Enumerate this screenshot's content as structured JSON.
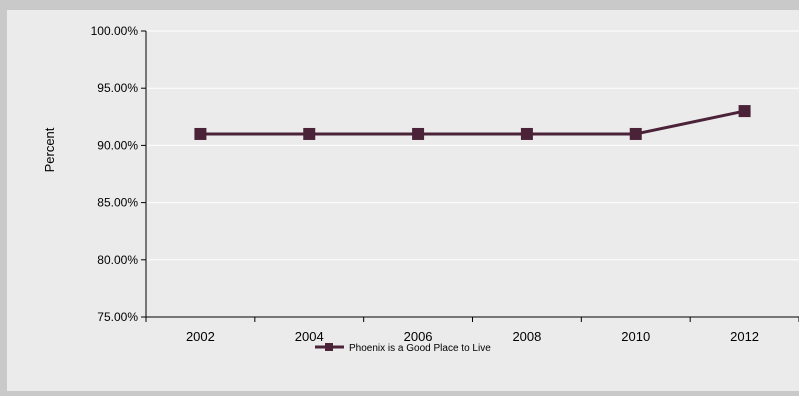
{
  "chart_data": {
    "type": "line",
    "title": "",
    "xlabel": "",
    "ylabel": "Percent",
    "categories": [
      "2002",
      "2004",
      "2006",
      "2008",
      "2010",
      "2012"
    ],
    "series": [
      {
        "name": "Phoenix is a Good Place to Live",
        "values": [
          0.91,
          0.91,
          0.91,
          0.91,
          0.91,
          0.93
        ],
        "color": "#4a2338",
        "marker": "square"
      }
    ],
    "ylim": [
      0.75,
      1.0
    ],
    "yticks": [
      0.75,
      0.8,
      0.85,
      0.9,
      0.95,
      1.0
    ],
    "ytick_labels": [
      "75.00%",
      "80.00%",
      "85.00%",
      "90.00%",
      "95.00%",
      "100.00%"
    ],
    "grid": true,
    "legend": "bottom-center",
    "colors": {
      "plot_background": "#ebebeb",
      "outer_background": "#c9c9c9",
      "gridline": "#ffffff",
      "axis": "#000000"
    }
  }
}
